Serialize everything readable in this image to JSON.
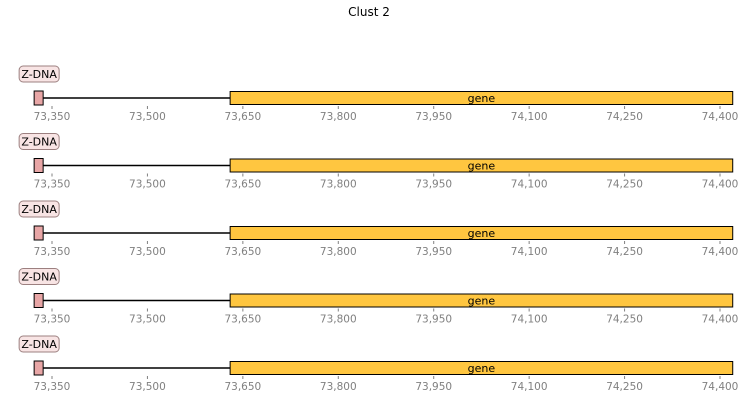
{
  "title": "Clust 2",
  "colors": {
    "gene_fill": "#FFC640",
    "zdna_fill": "#E8A6A6",
    "zdna_label_bg": "#F8E4E4",
    "outline": "#000000",
    "tick_text": "#808080",
    "label_border": "#9C8080"
  },
  "axis": {
    "xlim": [
      73300,
      74420
    ],
    "ticks": [
      73350,
      73500,
      73650,
      73800,
      73950,
      74100,
      74250,
      74400
    ],
    "tick_labels": [
      "73,350",
      "73,500",
      "73,650",
      "73,800",
      "73,950",
      "74,100",
      "74,250",
      "74,400"
    ]
  },
  "tracks": [
    {
      "line": [
        73330,
        74420
      ],
      "features": [
        {
          "type": "Z-DNA",
          "label": "Z-DNA",
          "start": 73325,
          "end": 73333
        },
        {
          "type": "gene",
          "label": "gene",
          "start": 73630,
          "end": 74420
        }
      ]
    },
    {
      "line": [
        73330,
        74420
      ],
      "features": [
        {
          "type": "Z-DNA",
          "label": "Z-DNA",
          "start": 73325,
          "end": 73333
        },
        {
          "type": "gene",
          "label": "gene",
          "start": 73630,
          "end": 74420
        }
      ]
    },
    {
      "line": [
        73330,
        74420
      ],
      "features": [
        {
          "type": "Z-DNA",
          "label": "Z-DNA",
          "start": 73325,
          "end": 73333
        },
        {
          "type": "gene",
          "label": "gene",
          "start": 73630,
          "end": 74420
        }
      ]
    },
    {
      "line": [
        73330,
        74420
      ],
      "features": [
        {
          "type": "Z-DNA",
          "label": "Z-DNA",
          "start": 73325,
          "end": 73333
        },
        {
          "type": "gene",
          "label": "gene",
          "start": 73630,
          "end": 74420
        }
      ]
    },
    {
      "line": [
        73330,
        74420
      ],
      "features": [
        {
          "type": "Z-DNA",
          "label": "Z-DNA",
          "start": 73325,
          "end": 73333
        },
        {
          "type": "gene",
          "label": "gene",
          "start": 73630,
          "end": 74420
        }
      ]
    }
  ]
}
